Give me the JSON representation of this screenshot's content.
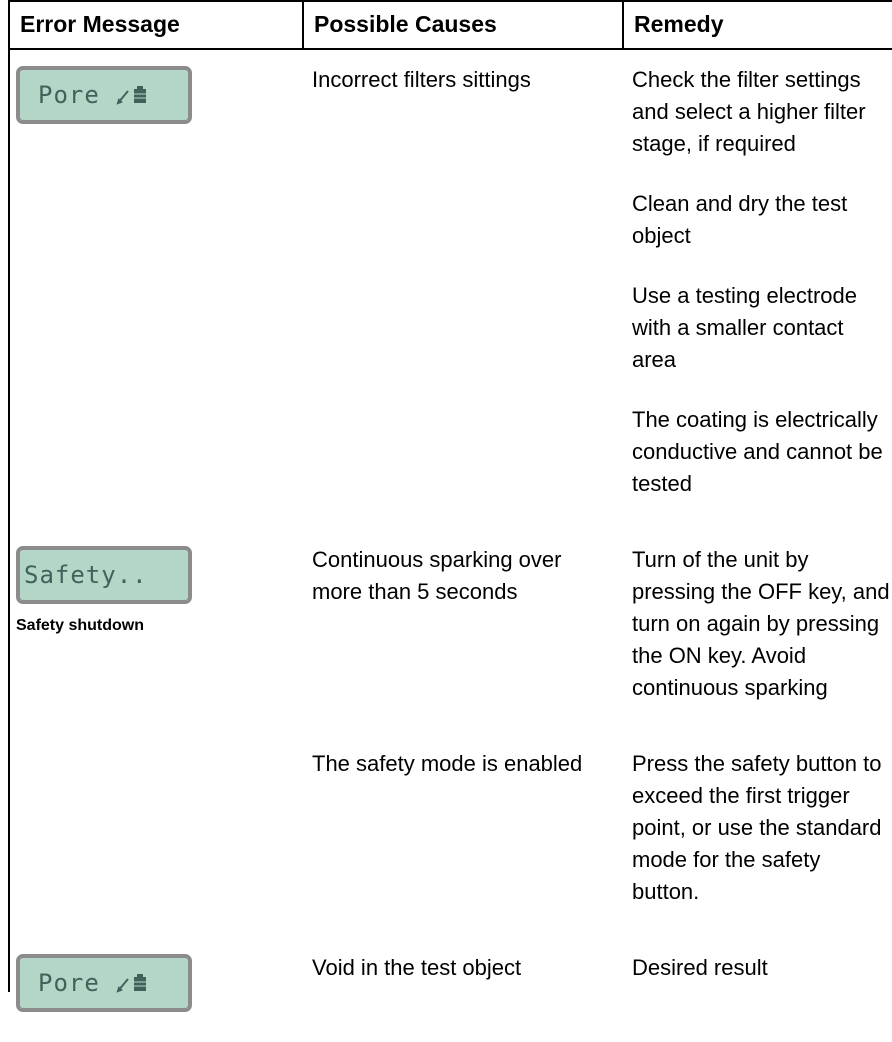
{
  "table": {
    "header": [
      "Error Message",
      "Possible Causes",
      "Remedy"
    ],
    "rows": [
      {
        "display": "Pore",
        "causes": [
          "Incorrect filters sittings"
        ],
        "remedies": [
          "Check the filter settings and select a higher filter stage, if required",
          "Clean and dry the test object",
          "Use a testing electrode with a smaller contact area",
          "The coating is electrically conductive and cannot be tested"
        ]
      },
      {
        "display": "Safety..",
        "caption": "Safety shutdown",
        "causes": [
          "Continuous sparking over more than 5 seconds"
        ],
        "remedies": [
          "Turn of the unit by pressing the OFF key, and turn on again by pressing the ON key. Avoid continuous sparking"
        ]
      },
      {
        "causes": [
          "The safety mode is enabled"
        ],
        "remedies": [
          "Press the safety button to exceed the first trigger point, or use the standard mode for the safety button."
        ]
      },
      {
        "display": "Pore",
        "causes": [
          "Void in the test object"
        ],
        "remedies": [
          "Desired result"
        ]
      }
    ]
  }
}
